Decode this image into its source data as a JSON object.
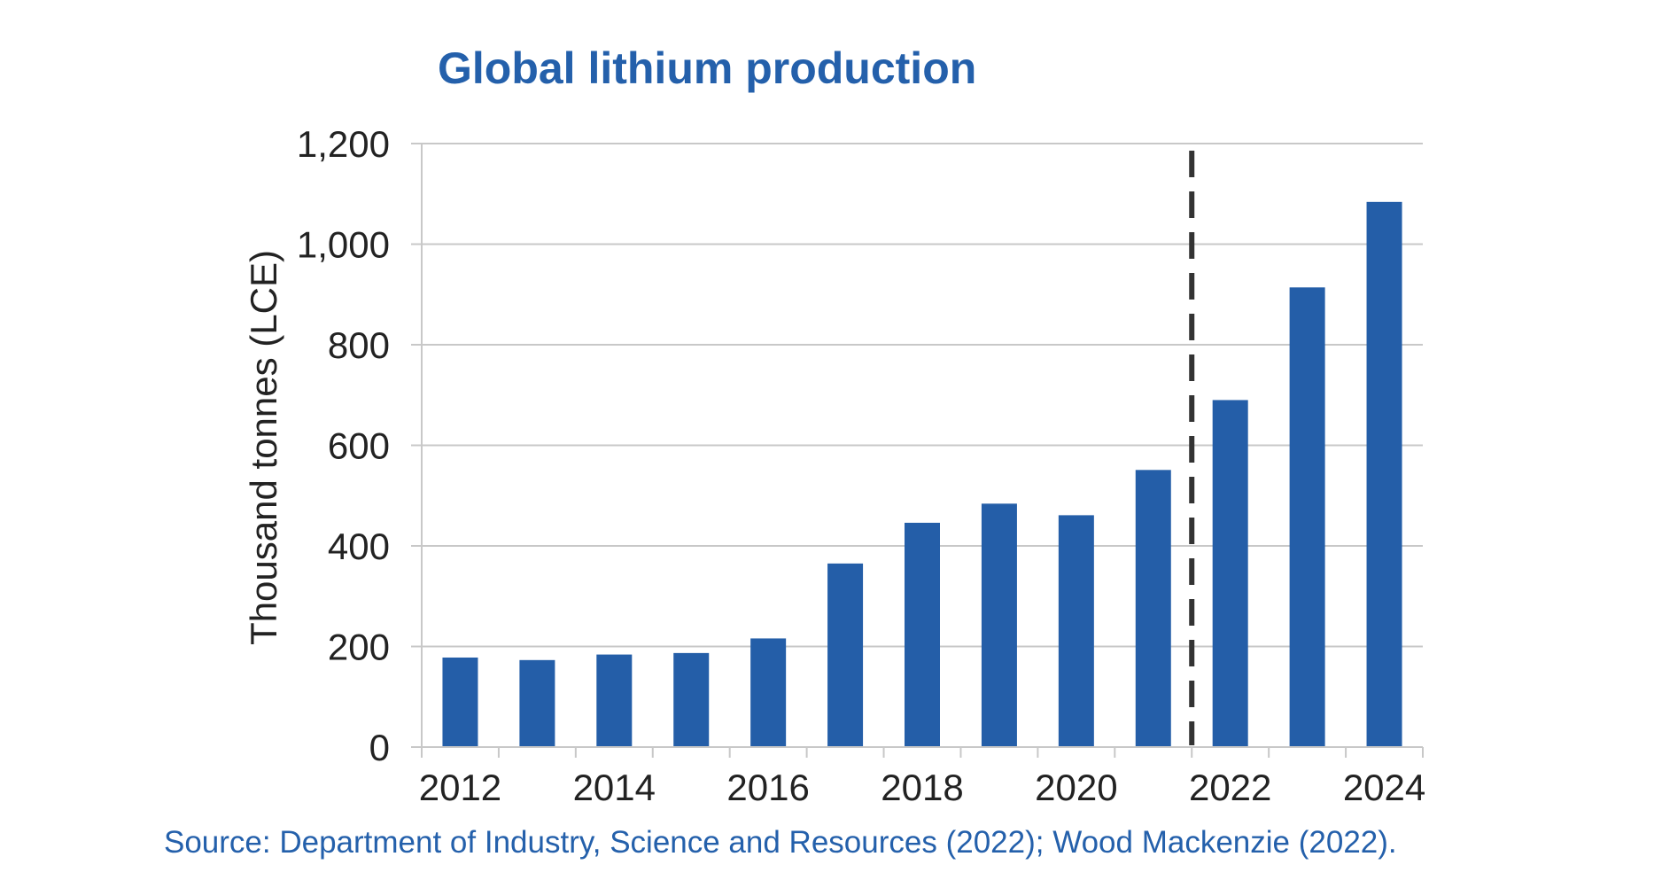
{
  "chart_data": {
    "type": "bar",
    "title": "Global lithium production",
    "ylabel": "Thousand tonnes (LCE)",
    "xlabel": "",
    "categories": [
      "2012",
      "2013",
      "2014",
      "2015",
      "2016",
      "2017",
      "2018",
      "2019",
      "2020",
      "2021",
      "2022",
      "2023",
      "2024"
    ],
    "x_tick_labels": [
      "2012",
      "2014",
      "2016",
      "2018",
      "2020",
      "2022",
      "2024"
    ],
    "values": [
      178,
      173,
      184,
      187,
      216,
      365,
      446,
      484,
      461,
      551,
      690,
      914,
      1084
    ],
    "ylim": [
      0,
      1200
    ],
    "y_ticks": [
      0,
      200,
      400,
      600,
      800,
      1000,
      1200
    ],
    "y_tick_labels": [
      "0",
      "200",
      "400",
      "600",
      "800",
      "1,000",
      "1,200"
    ],
    "grid": true,
    "forecast_divider_between": [
      "2021",
      "2022"
    ],
    "bar_color": "#245EA8",
    "grid_color": "#C8C8C8",
    "divider_color": "#333333",
    "source": "Source: Department of Industry, Science and Resources (2022); Wood Mackenzie (2022)."
  },
  "colors": {
    "title": "#2460AB",
    "source": "#2460AB",
    "text": "#222222"
  }
}
